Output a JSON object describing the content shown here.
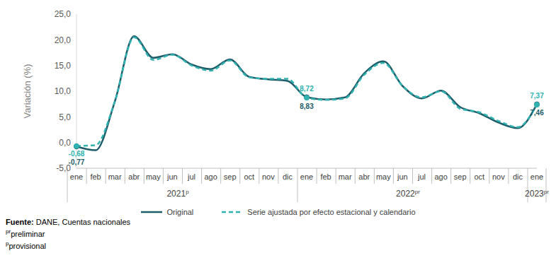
{
  "chart_data": {
    "type": "line",
    "y_label": "Variación (%)",
    "categories": [
      "ene",
      "feb",
      "mar",
      "abr",
      "may",
      "jun",
      "jul",
      "ago",
      "sep",
      "oct",
      "nov",
      "dic",
      "ene",
      "feb",
      "mar",
      "abr",
      "may",
      "jun",
      "jul",
      "ago",
      "sep",
      "oct",
      "nov",
      "dic",
      "ene"
    ],
    "groups": [
      {
        "label": "2021",
        "sup": "p",
        "from": 0,
        "to": 11
      },
      {
        "label": "2022",
        "sup": "pr",
        "from": 12,
        "to": 23
      },
      {
        "label": "2023",
        "sup": "pr",
        "from": 24,
        "to": 24
      }
    ],
    "series": [
      {
        "name": "Original",
        "color": "#1d5c68",
        "line_style": "solid",
        "values": [
          -0.77,
          -1.5,
          8.0,
          20.7,
          16.5,
          17.2,
          15.2,
          14.3,
          16.2,
          12.8,
          12.3,
          12.0,
          8.83,
          8.4,
          8.8,
          13.5,
          15.8,
          11.0,
          8.6,
          10.1,
          6.9,
          5.7,
          3.9,
          2.8,
          7.46
        ],
        "value_labels": [
          "-0,77",
          null,
          null,
          null,
          null,
          null,
          null,
          null,
          null,
          null,
          null,
          null,
          "8,83",
          null,
          null,
          null,
          null,
          null,
          null,
          null,
          null,
          null,
          null,
          null,
          "7,46"
        ]
      },
      {
        "name": "Serie ajustada por efecto estacional y calendario",
        "color": "#2fb2b0",
        "line_style": "dashed",
        "values": [
          -0.68,
          -0.5,
          8.0,
          20.5,
          16.1,
          17.1,
          15.0,
          14.0,
          16.0,
          12.7,
          12.4,
          12.4,
          8.72,
          8.3,
          8.6,
          13.2,
          15.5,
          11.0,
          8.8,
          10.0,
          6.6,
          5.9,
          4.2,
          3.0,
          7.37
        ],
        "value_labels": [
          "-0,68",
          null,
          null,
          null,
          null,
          null,
          null,
          null,
          null,
          null,
          null,
          null,
          "8,72",
          null,
          null,
          null,
          null,
          null,
          null,
          null,
          null,
          null,
          null,
          null,
          "7,37"
        ]
      }
    ],
    "ylim": [
      -5,
      25
    ],
    "yticks": [
      {
        "value": -5,
        "label": "-5,0"
      },
      {
        "value": 0,
        "label": "0,0"
      },
      {
        "value": 5,
        "label": "5,0"
      },
      {
        "value": 10,
        "label": "10,0"
      },
      {
        "value": 15,
        "label": "15,0"
      },
      {
        "value": 20,
        "label": "20,0"
      },
      {
        "value": 25,
        "label": "25,0"
      }
    ],
    "grid": false,
    "notes": [
      {
        "bold": "Fuente:",
        "text": "DANE, Cuentas nacionales"
      },
      {
        "sup": "pr",
        "text": "preliminar"
      },
      {
        "sup": "p",
        "text": "provisional"
      }
    ]
  }
}
